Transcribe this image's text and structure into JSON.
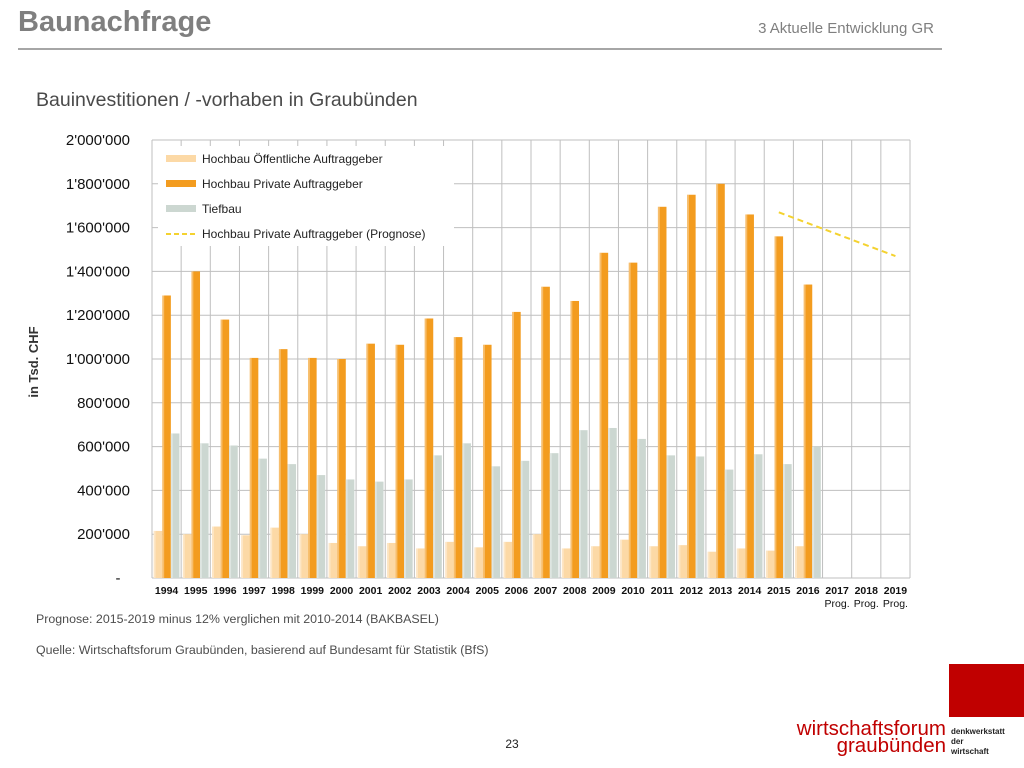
{
  "header": {
    "title": "Baunachfrage",
    "section": "3 Aktuelle Entwicklung GR"
  },
  "slide": {
    "subtitle": "Bauinvestitionen / -vorhaben in Graubünden",
    "note_prognose": "Prognose: 2015-2019 minus 12% verglichen mit 2010-2014 (BAKBASEL)",
    "note_quelle": "Quelle: Wirtschaftsforum Graubünden, basierend auf Bundesamt für Statistik (BfS)",
    "page_number": "23"
  },
  "logo": {
    "line1": "wirtschaftsforum",
    "line2": "graubünden",
    "side": [
      "denkwerkstatt",
      "der",
      "wirtschaft"
    ]
  },
  "colors": {
    "hochbau_oeffentlich": "#fcd9a6",
    "hochbau_privat": "#f39c1f",
    "tiefbau": "#ccd7d1",
    "prognose": "#f4d22f",
    "grid": "#bfbfbf",
    "accent": "#c00000"
  },
  "chart_data": {
    "type": "bar",
    "categories": [
      "1994",
      "1995",
      "1996",
      "1997",
      "1998",
      "1999",
      "2000",
      "2001",
      "2002",
      "2003",
      "2004",
      "2005",
      "2006",
      "2007",
      "2008",
      "2009",
      "2010",
      "2011",
      "2012",
      "2013",
      "2014",
      "2015",
      "2016",
      "2017",
      "2018",
      "2019"
    ],
    "category_sublabels": [
      "",
      "",
      "",
      "",
      "",
      "",
      "",
      "",
      "",
      "",
      "",
      "",
      "",
      "",
      "",
      "",
      "",
      "",
      "",
      "",
      "",
      "",
      "",
      "Prog.",
      "Prog.",
      "Prog."
    ],
    "ylabel": "in Tsd. CHF",
    "ylim": [
      0,
      2000000
    ],
    "yticks": [
      0,
      200000,
      400000,
      600000,
      800000,
      1000000,
      1200000,
      1400000,
      1600000,
      1800000,
      2000000
    ],
    "ytick_labels": [
      "-",
      "200'000",
      "400'000",
      "600'000",
      "800'000",
      "1'000'000",
      "1'200'000",
      "1'400'000",
      "1'600'000",
      "1'800'000",
      "2'000'000"
    ],
    "legend_position": "top-left",
    "grid": true,
    "series": [
      {
        "name": "Hochbau Öffentliche Auftraggeber",
        "color": "#fcd9a6",
        "values": [
          215000,
          200000,
          235000,
          195000,
          230000,
          200000,
          160000,
          145000,
          160000,
          135000,
          165000,
          140000,
          165000,
          200000,
          135000,
          145000,
          175000,
          145000,
          150000,
          120000,
          135000,
          125000,
          145000,
          null,
          null,
          null
        ]
      },
      {
        "name": "Hochbau Private Auftraggeber",
        "color": "#f39c1f",
        "values": [
          1290000,
          1400000,
          1180000,
          1005000,
          1045000,
          1005000,
          1000000,
          1070000,
          1065000,
          1185000,
          1100000,
          1065000,
          1215000,
          1330000,
          1265000,
          1485000,
          1440000,
          1695000,
          1750000,
          1800000,
          1660000,
          1560000,
          1340000,
          null,
          null,
          null
        ]
      },
      {
        "name": "Tiefbau",
        "color": "#ccd7d1",
        "values": [
          660000,
          615000,
          605000,
          545000,
          520000,
          470000,
          450000,
          440000,
          450000,
          560000,
          615000,
          510000,
          535000,
          570000,
          675000,
          685000,
          635000,
          560000,
          555000,
          495000,
          565000,
          520000,
          600000,
          null,
          null,
          null
        ]
      },
      {
        "name": "Hochbau Private Auftraggeber (Prognose)",
        "type": "line",
        "style": "dashed",
        "color": "#f4d22f",
        "x": [
          "2015",
          "2019"
        ],
        "values": [
          1670000,
          1470000
        ]
      }
    ]
  }
}
